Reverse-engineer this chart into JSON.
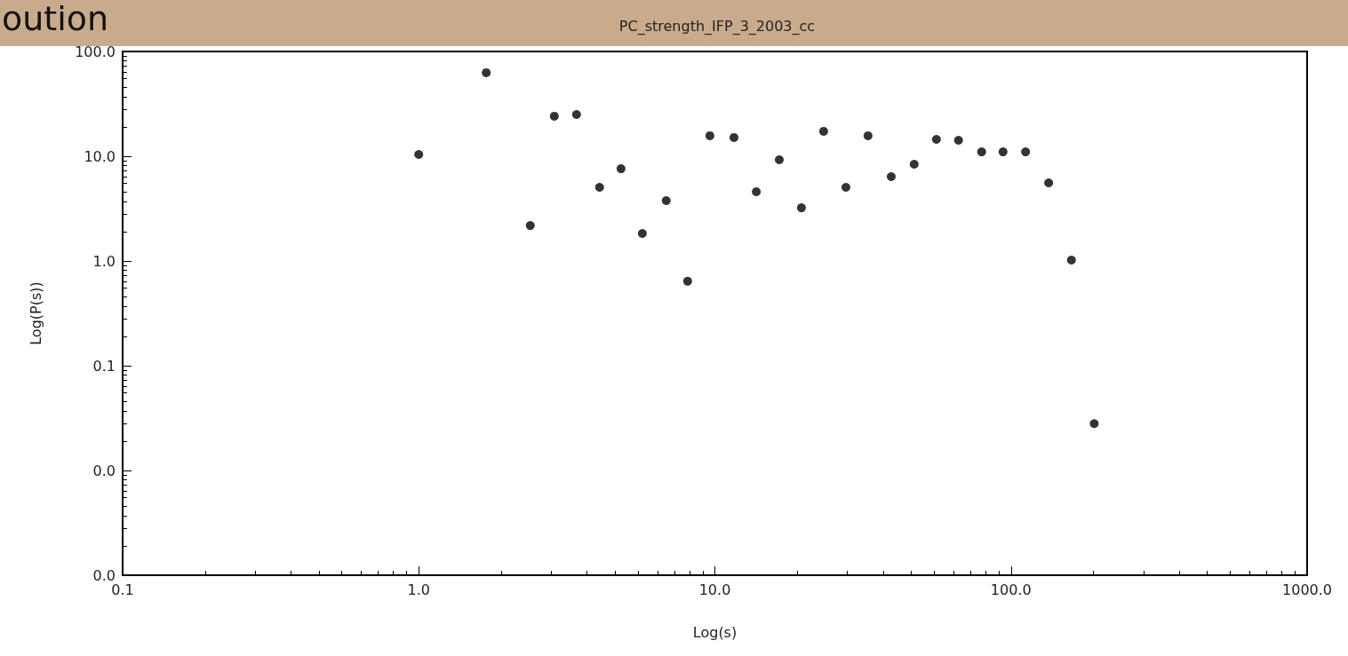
{
  "chart_data": {
    "type": "scatter",
    "title": "PC_strength_IFP_3_2003_cc",
    "annotations": [
      "oution"
    ],
    "xlabel": "Log(s)",
    "ylabel": "Log(P(s))",
    "log": "xy",
    "grid": false,
    "marker": "circle",
    "xlim": [
      0.1,
      1000
    ],
    "xticks": [
      {
        "value": 0.1,
        "label": "0.1"
      },
      {
        "value": 1,
        "label": "1.0"
      },
      {
        "value": 10,
        "label": "10.0"
      },
      {
        "value": 100,
        "label": "100.0"
      },
      {
        "value": 1000,
        "label": "1000.0"
      }
    ],
    "ylim": [
      0.001,
      100
    ],
    "yticks": [
      {
        "value": 0.001,
        "label": "0.0"
      },
      {
        "value": 0.01,
        "label": "0.0"
      },
      {
        "value": 0.1,
        "label": "0.1"
      },
      {
        "value": 1,
        "label": "1.0"
      },
      {
        "value": 10,
        "label": "10.0"
      },
      {
        "value": 100,
        "label": "100.0"
      }
    ],
    "series": [
      {
        "color": "#000000",
        "x": [
          1.0,
          1.69,
          2.38,
          2.87,
          3.41,
          4.08,
          4.82,
          5.69,
          6.85,
          8.09,
          9.62,
          11.6,
          13.8,
          16.5,
          19.6,
          23.3,
          27.7,
          32.9,
          39.4,
          47.1,
          56.0,
          66.5,
          79.6,
          94.0,
          112,
          134,
          160,
          191
        ],
        "values": [
          10.4,
          62.7,
          2.18,
          24.1,
          25.0,
          5.05,
          7.6,
          1.83,
          3.77,
          0.64,
          15.7,
          15.1,
          4.58,
          9.25,
          3.22,
          17.3,
          5.05,
          15.7,
          6.38,
          8.39,
          14.5,
          14.2,
          11.0,
          11.0,
          11.0,
          5.57,
          1.02,
          0.028
        ]
      }
    ]
  }
}
